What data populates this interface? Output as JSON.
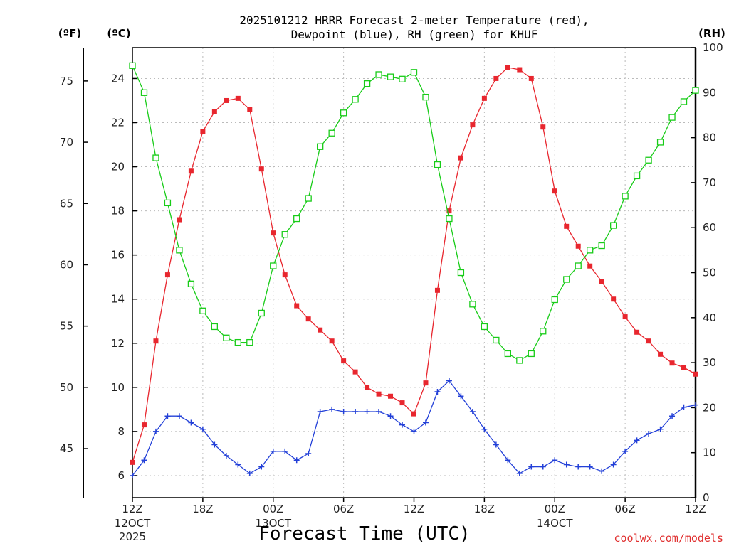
{
  "colors": {
    "temperature": "#e8262e",
    "dewpoint": "#2340d8",
    "rh": "#18cc18",
    "grid": "#bbbbbb",
    "credit": "#e03030"
  },
  "chart_data": {
    "type": "line",
    "title_line1": "2025101212 HRRR Forecast 2-meter Temperature (red),",
    "title_line2": "Dewpoint (blue), RH (green) for KHUF",
    "xlabel": "Forecast Time (UTC)",
    "credit": "coolwx.com/models",
    "units": {
      "fahrenheit": "(ºF)",
      "celsius": "(ºC)",
      "rh": "(RH)"
    },
    "x_hours_range": [
      0,
      48
    ],
    "x_ticks": [
      {
        "hour": 0,
        "label": "12Z",
        "sub1": "12OCT",
        "sub2": "2025"
      },
      {
        "hour": 6,
        "label": "18Z",
        "sub1": "",
        "sub2": ""
      },
      {
        "hour": 12,
        "label": "00Z",
        "sub1": "13OCT",
        "sub2": ""
      },
      {
        "hour": 18,
        "label": "06Z",
        "sub1": "",
        "sub2": ""
      },
      {
        "hour": 24,
        "label": "12Z",
        "sub1": "",
        "sub2": ""
      },
      {
        "hour": 30,
        "label": "18Z",
        "sub1": "",
        "sub2": ""
      },
      {
        "hour": 36,
        "label": "00Z",
        "sub1": "14OCT",
        "sub2": ""
      },
      {
        "hour": 42,
        "label": "06Z",
        "sub1": "",
        "sub2": ""
      },
      {
        "hour": 48,
        "label": "12Z",
        "sub1": "",
        "sub2": ""
      }
    ],
    "y_celsius_range": [
      5,
      25.4
    ],
    "y_celsius_ticks": [
      6,
      8,
      10,
      12,
      14,
      16,
      18,
      20,
      22,
      24
    ],
    "y_fahrenheit_ticks": [
      45,
      50,
      55,
      60,
      65,
      70,
      75
    ],
    "y_rh_range": [
      0,
      100
    ],
    "y_rh_ticks": [
      0,
      10,
      20,
      30,
      40,
      50,
      60,
      70,
      80,
      90,
      100
    ],
    "series": [
      {
        "name": "Temperature",
        "axis": "celsius",
        "marker": "filled-square",
        "values": [
          6.6,
          8.3,
          12.1,
          15.1,
          17.6,
          19.8,
          21.6,
          22.5,
          23.0,
          23.1,
          22.6,
          19.9,
          17.0,
          15.1,
          13.7,
          13.1,
          12.6,
          12.1,
          11.2,
          10.7,
          10.0,
          9.7,
          9.6,
          9.3,
          8.8,
          10.2,
          14.4,
          18.0,
          20.4,
          21.9,
          23.1,
          24.0,
          24.5,
          24.4,
          24.0,
          21.8,
          18.9,
          17.3,
          16.4,
          15.5,
          14.8,
          14.0,
          13.2,
          12.5,
          12.1,
          11.5,
          11.1,
          10.9,
          10.6
        ]
      },
      {
        "name": "Dewpoint",
        "axis": "celsius",
        "marker": "plus",
        "values": [
          6.0,
          6.7,
          8.0,
          8.7,
          8.7,
          8.4,
          8.1,
          7.4,
          6.9,
          6.5,
          6.1,
          6.4,
          7.1,
          7.1,
          6.7,
          7.0,
          8.9,
          9.0,
          8.9,
          8.9,
          8.9,
          8.9,
          8.7,
          8.3,
          8.0,
          8.4,
          9.8,
          10.3,
          9.6,
          8.9,
          8.1,
          7.4,
          6.7,
          6.1,
          6.4,
          6.4,
          6.7,
          6.5,
          6.4,
          6.4,
          6.2,
          6.5,
          7.1,
          7.6,
          7.9,
          8.1,
          8.7,
          9.1,
          9.2
        ]
      },
      {
        "name": "RH",
        "axis": "rh",
        "marker": "open-square",
        "values": [
          96,
          90,
          75.5,
          65.5,
          55,
          47.5,
          41.5,
          38,
          35.5,
          34.5,
          34.5,
          41,
          51.5,
          58.5,
          62,
          66.5,
          78,
          81,
          85.5,
          88.5,
          92,
          94,
          93.5,
          93,
          94.5,
          89,
          74,
          62,
          50,
          43,
          38,
          35,
          32,
          30.5,
          32,
          37,
          44,
          48.5,
          51.5,
          55,
          56,
          60.5,
          67,
          71.5,
          75,
          79,
          84.5,
          88,
          90.5
        ]
      }
    ]
  }
}
